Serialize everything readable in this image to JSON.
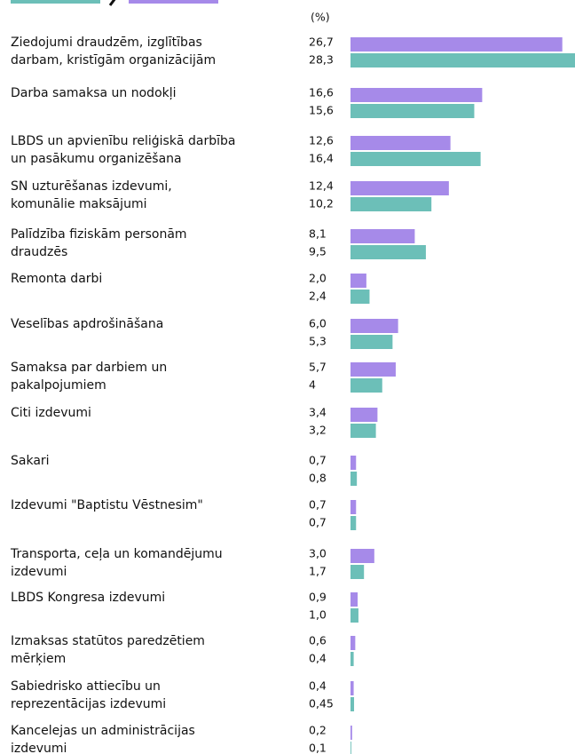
{
  "chart_data": {
    "type": "bar",
    "orientation": "horizontal",
    "unit_label": "(%)",
    "categories": [
      [
        "Ziedojumi draudzēm, izglītības",
        "darbam, kristīgām organizācijām"
      ],
      [
        "Darba samaksa un nodokļi"
      ],
      [
        "LBDS un apvienību reliģiskā darbība",
        "un pasākumu organizēšana"
      ],
      [
        "SN uzturēšanas izdevumi,",
        "komunālie maksājumi"
      ],
      [
        "Palīdzība fiziskām personām",
        "draudzēs"
      ],
      [
        "Remonta darbi"
      ],
      [
        "Veselības apdrošināšana"
      ],
      [
        "Samaksa par darbiem un",
        "pakalpojumiem"
      ],
      [
        "Citi izdevumi"
      ],
      [
        "Sakari"
      ],
      [
        "Izdevumi \"Baptistu Vēstnesim\""
      ],
      [
        "Transporta, ceļa un komandējumu",
        "izdevumi"
      ],
      [
        "LBDS Kongresa izdevumi"
      ],
      [
        "Izmaksas statūtos paredzētiem",
        "mērķiem"
      ],
      [
        "Sabiedrisko attiecību un",
        "reprezentācijas izdevumi"
      ],
      [
        "Kancelejas un administrācijas",
        "izdevumi"
      ]
    ],
    "series": [
      {
        "color": "#a68ae9",
        "values": [
          26.7,
          16.6,
          12.6,
          12.4,
          8.1,
          2.0,
          6.0,
          5.7,
          3.4,
          0.7,
          0.7,
          3.0,
          0.9,
          0.6,
          0.4,
          0.2
        ],
        "value_labels": [
          "26,7",
          "16,6",
          "12,6",
          "12,4",
          "8,1",
          "2,0",
          "6,0",
          "5,7",
          "3,4",
          "0,7",
          "0,7",
          "3,0",
          "0,9",
          "0,6",
          "0,4",
          "0,2"
        ]
      },
      {
        "color": "#6cbfb8",
        "values": [
          28.3,
          15.6,
          16.4,
          10.2,
          9.5,
          2.4,
          5.3,
          4,
          3.2,
          0.8,
          0.7,
          1.7,
          1.0,
          0.4,
          0.45,
          0.1
        ],
        "value_labels": [
          "28,3",
          "15,6",
          "16,4",
          "10,2",
          "9,5",
          "2,4",
          "5,3",
          "4",
          "3,2",
          "0,8",
          "0,7",
          "1,7",
          "1,0",
          "0,4",
          "0,45",
          "0,1"
        ]
      }
    ],
    "xlim": [
      0,
      28.3
    ]
  }
}
